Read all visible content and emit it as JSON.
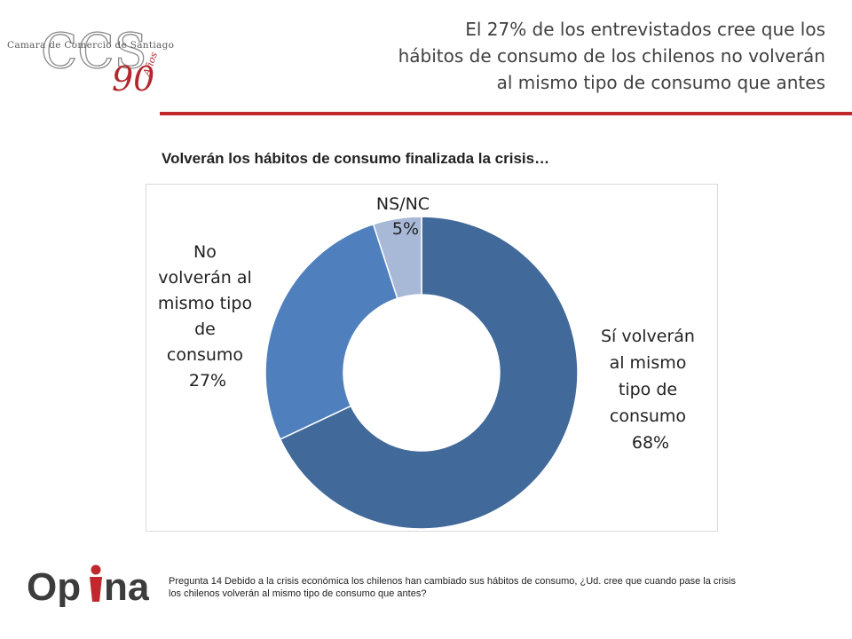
{
  "logo_ccs": {
    "initials": "CCS",
    "name": "Camara de Comercio de Santiago",
    "anniversary_number": "90",
    "anniversary_word": "Años"
  },
  "headline": {
    "lines": [
      "El 27% de los entrevistados cree que los",
      "hábitos de consumo de los chilenos no volverán",
      "al mismo tipo de consumo que antes"
    ]
  },
  "colors": {
    "accent_red": "#c0282d",
    "slice_si": "#41699a",
    "slice_no": "#4f80bd",
    "slice_nsnc": "#a8b9d8"
  },
  "chart_data": {
    "type": "pie",
    "variant": "donut",
    "title": "Volverán los hábitos de consumo finalizada la crisis…",
    "slices": [
      {
        "name": "Sí volverán al mismo tipo de consumo",
        "value": 68,
        "label_lines": [
          "Sí volverán",
          "al mismo",
          "tipo de",
          "consumo",
          "68%"
        ],
        "color": "#41699a"
      },
      {
        "name": "No volverán al mismo tipo de consumo",
        "value": 27,
        "label_lines": [
          "No",
          "volverán al",
          "mismo tipo",
          "de",
          "consumo",
          "27%"
        ],
        "color": "#4f80bd"
      },
      {
        "name": "NS/NC",
        "value": 5,
        "label_lines": [
          "NS/NC",
          "5%"
        ],
        "color": "#a8b9d8"
      }
    ],
    "legend": "none"
  },
  "footnote": {
    "text": "Pregunta  14  Debido a la crisis económica los chilenos han cambiado sus hábitos de consumo, ¿Ud. cree que cuando pase la crisis los chilenos volverán al mismo tipo de consumo que antes?"
  },
  "logo_opina": {
    "text_before": "Op",
    "text_after": "na"
  }
}
